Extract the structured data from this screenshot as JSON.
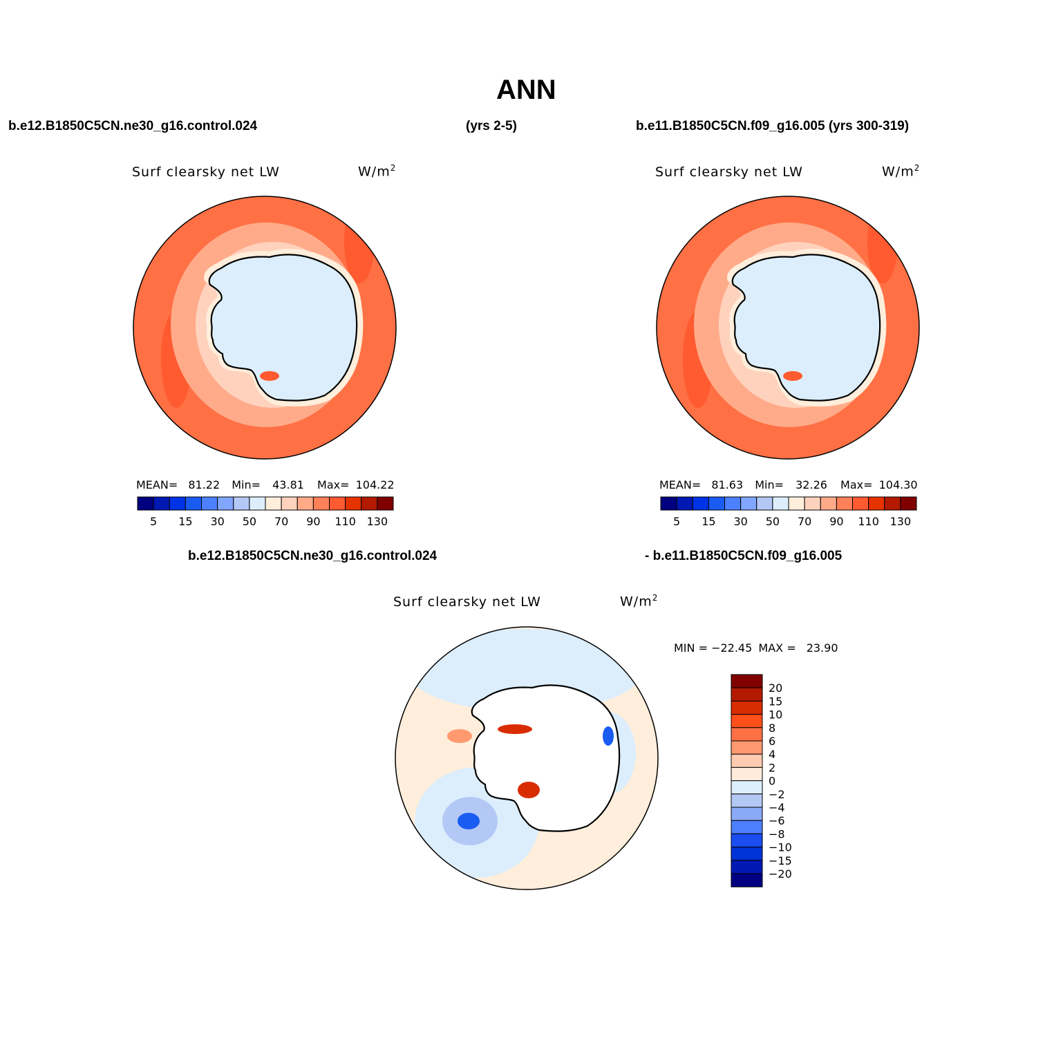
{
  "title": "ANN",
  "header": {
    "left_case": "b.e12.B1850C5CN.ne30_g16.control.024",
    "middle": "(yrs 2-5)",
    "right_case": "b.e11.B1850C5CN.f09_g16.005 (yrs 300-319)"
  },
  "diff_header": {
    "left": "b.e12.B1850C5CN.ne30_g16.control.024",
    "right": "- b.e11.B1850C5CN.f09_g16.005"
  },
  "variable": "Surf clearsky net LW",
  "units_base": "W/m",
  "units_sup": "2",
  "panel_left": {
    "mean_label": "MEAN=",
    "mean": "81.22",
    "min_label": "Min=",
    "min": "43.81",
    "max_label": "Max=",
    "max": "104.22"
  },
  "panel_right": {
    "mean_label": "MEAN=",
    "mean": "81.63",
    "min_label": "Min=",
    "min": "32.26",
    "max_label": "Max=",
    "max": "104.30"
  },
  "panel_diff": {
    "min_label": "MIN =",
    "min": "−22.45",
    "max_label": "MAX =",
    "max": "23.90"
  },
  "abs_colorbar": {
    "colors": [
      "#000080",
      "#0019b3",
      "#0033e6",
      "#1a5cf2",
      "#4d80ff",
      "#80a6ff",
      "#b3c8f5",
      "#dceefc",
      "#ffeedb",
      "#ffd2bd",
      "#ffab8a",
      "#ff8059",
      "#ff5a30",
      "#e63300",
      "#b31a00",
      "#800000"
    ],
    "labels": [
      "5",
      "15",
      "30",
      "50",
      "70",
      "90",
      "110",
      "130"
    ]
  },
  "diff_colorbar": {
    "colors": [
      "#800000",
      "#b31a00",
      "#d92c00",
      "#ff4f1a",
      "#ff7045",
      "#ff9a70",
      "#ffcbb0",
      "#ffebdb",
      "#dceefc",
      "#b3c8f5",
      "#8aa9f7",
      "#4d80ff",
      "#1a4cf0",
      "#0033d6",
      "#0019b3",
      "#000080"
    ],
    "labels": [
      "20",
      "15",
      "10",
      "8",
      "6",
      "4",
      "2",
      "0",
      "−2",
      "−4",
      "−6",
      "−8",
      "−10",
      "−15",
      "−20"
    ]
  },
  "map_colors": {
    "outer_ocean": "#ff7045",
    "mid_ocean": "#ffab8a",
    "inner_ocean": "#ffd2bd",
    "coast_band": "#ffeedb",
    "continent": "#dceefc",
    "strong_band": "#ff5a30",
    "diff_background": "#ffeedb",
    "diff_neg_light": "#dceefc",
    "diff_neg_mid": "#b3c8f5",
    "diff_neg_strong": "#1a5cf2",
    "diff_pos_strong": "#d92c00",
    "diff_pos_mid": "#ff9a70"
  }
}
